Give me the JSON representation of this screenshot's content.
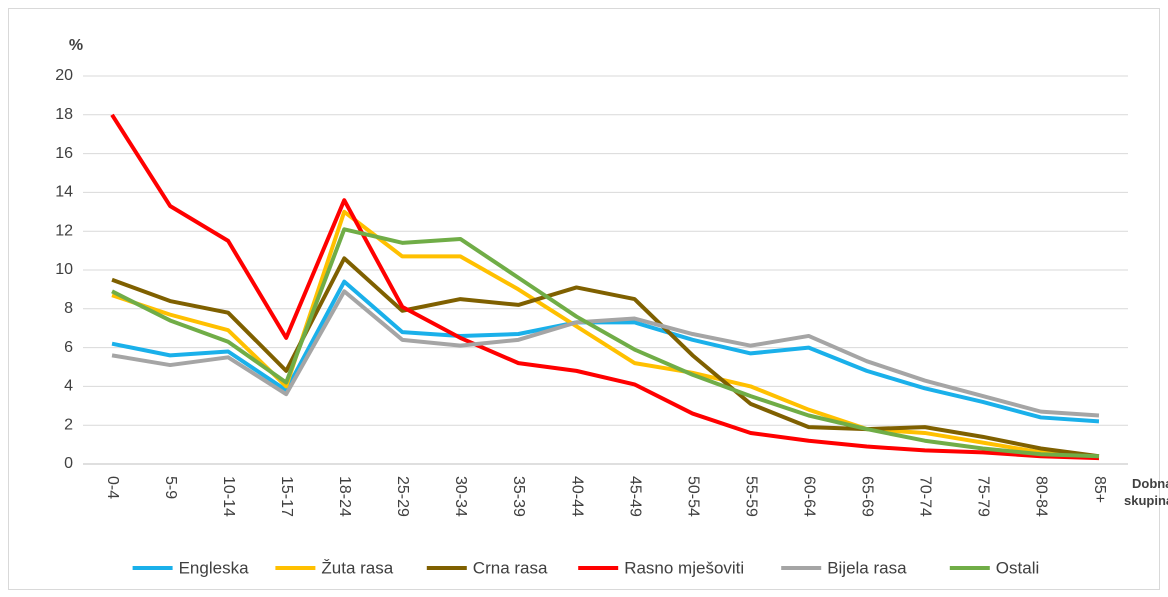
{
  "chart_data": {
    "type": "line",
    "y_label": "%",
    "x_label": "Dobna skupina",
    "categories": [
      "0-4",
      "5-9",
      "10-14",
      "15-17",
      "18-24",
      "25-29",
      "30-34",
      "35-39",
      "40-44",
      "45-49",
      "50-54",
      "55-59",
      "60-64",
      "65-69",
      "70-74",
      "75-79",
      "80-84",
      "85+"
    ],
    "series": [
      {
        "name": "Engleska",
        "color": "#1ab0ea",
        "values": [
          6.2,
          5.6,
          5.8,
          3.8,
          9.4,
          6.8,
          6.6,
          6.7,
          7.3,
          7.3,
          6.4,
          5.7,
          6.0,
          4.8,
          3.9,
          3.2,
          2.4,
          2.2
        ]
      },
      {
        "name": "Žuta rasa",
        "color": "#ffc000",
        "values": [
          8.7,
          7.7,
          6.9,
          4.0,
          13.0,
          10.7,
          10.7,
          9.0,
          7.1,
          5.2,
          4.7,
          4.0,
          2.8,
          1.8,
          1.6,
          1.1,
          0.6,
          0.3
        ]
      },
      {
        "name": "Crna rasa",
        "color": "#7f6000",
        "values": [
          9.5,
          8.4,
          7.8,
          4.8,
          10.6,
          7.9,
          8.5,
          8.2,
          9.1,
          8.5,
          5.6,
          3.1,
          1.9,
          1.8,
          1.9,
          1.4,
          0.8,
          0.4
        ]
      },
      {
        "name": "Rasno mješoviti",
        "color": "#ff0000",
        "values": [
          18.0,
          13.3,
          11.5,
          6.5,
          13.6,
          8.1,
          6.5,
          5.2,
          4.8,
          4.1,
          2.6,
          1.6,
          1.2,
          0.9,
          0.7,
          0.6,
          0.4,
          0.3
        ]
      },
      {
        "name": "Bijela rasa",
        "color": "#a5a5a5",
        "values": [
          5.6,
          5.1,
          5.5,
          3.6,
          8.9,
          6.4,
          6.1,
          6.4,
          7.3,
          7.5,
          6.7,
          6.1,
          6.6,
          5.3,
          4.3,
          3.5,
          2.7,
          2.5
        ]
      },
      {
        "name": "Ostali",
        "color": "#70ad47",
        "values": [
          8.9,
          7.4,
          6.3,
          4.2,
          12.1,
          11.4,
          11.6,
          9.6,
          7.6,
          5.9,
          4.6,
          3.5,
          2.5,
          1.8,
          1.2,
          0.8,
          0.5,
          0.4
        ]
      }
    ],
    "ylim": [
      0,
      20
    ],
    "yticks": [
      0,
      2,
      4,
      6,
      8,
      10,
      12,
      14,
      16,
      18,
      20
    ],
    "grid": true
  }
}
